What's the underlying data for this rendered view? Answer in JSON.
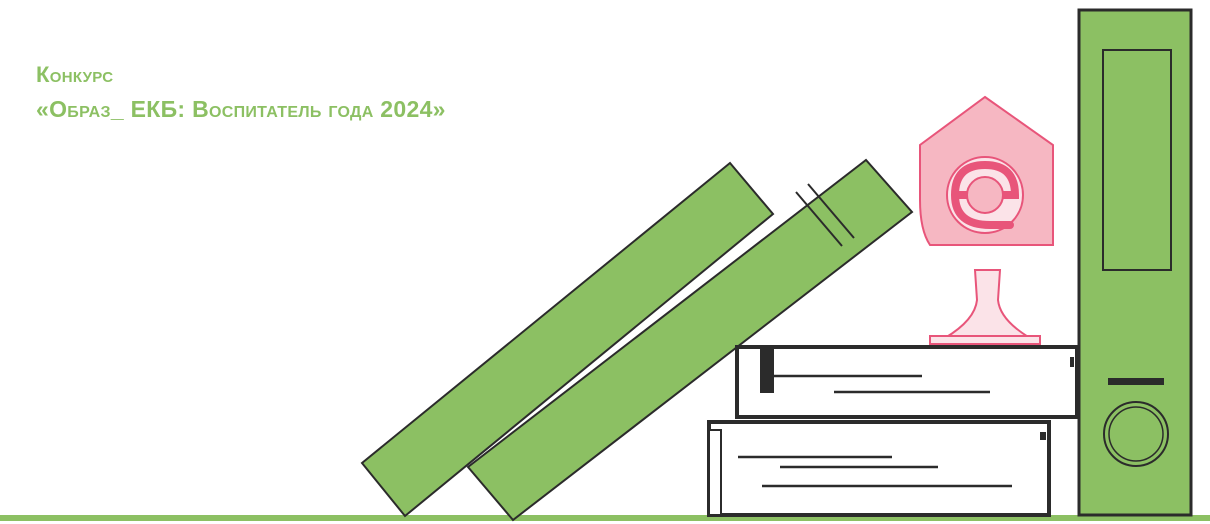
{
  "title": {
    "line1": "Конкурс",
    "line2": "«Образ_ ЕКБ: Воспитатель года 2024»"
  },
  "colors": {
    "accent_green": "#8cc063",
    "book_green": "#8cc063",
    "outline": "#2b2b2b",
    "logo_pink": "#f4a6b3",
    "logo_stroke": "#e8557a"
  },
  "illustration": {
    "leaning_books": 2,
    "stacked_books": 2,
    "binder": true,
    "logo": "e-house-logo"
  }
}
